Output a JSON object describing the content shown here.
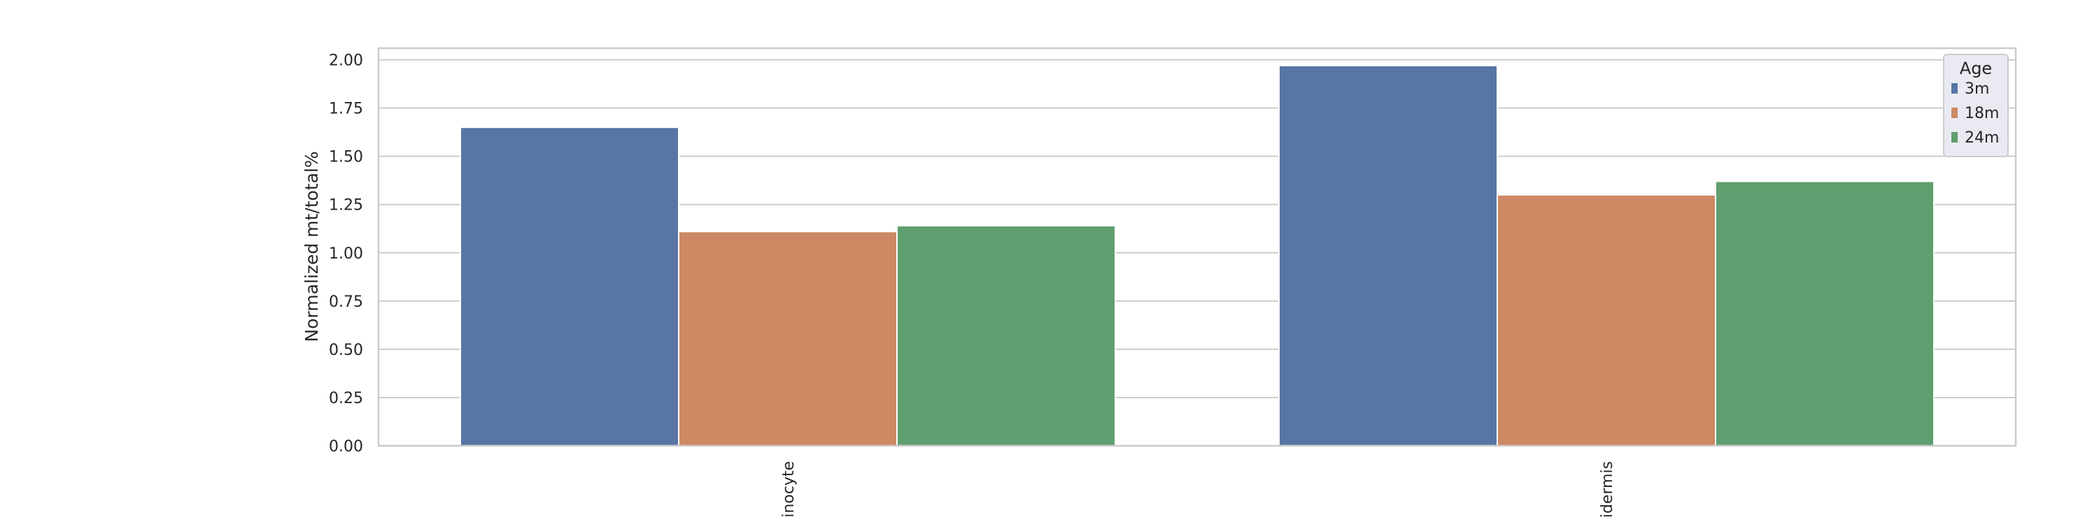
{
  "chart_data": {
    "type": "bar",
    "categories": [
      "keratinocyte",
      "epidermis"
    ],
    "visible_category_text": [
      "inocyte",
      "idermis"
    ],
    "series": [
      {
        "name": "3m",
        "values": [
          1.65,
          1.97
        ],
        "color": "#5875a4"
      },
      {
        "name": "18m",
        "values": [
          1.11,
          1.3
        ],
        "color": "#cc8963"
      },
      {
        "name": "24m",
        "values": [
          1.14,
          1.37
        ],
        "color": "#5f9e6e"
      }
    ],
    "title": "",
    "xlabel": "",
    "ylabel": "Normalized mt/total%",
    "ylim": [
      0,
      2.06
    ],
    "yticks": [
      "0.00",
      "0.25",
      "0.50",
      "0.75",
      "1.00",
      "1.25",
      "1.50",
      "1.75",
      "2.00"
    ],
    "legend": {
      "title": "Age",
      "placement": "top-right"
    },
    "grid": true
  }
}
